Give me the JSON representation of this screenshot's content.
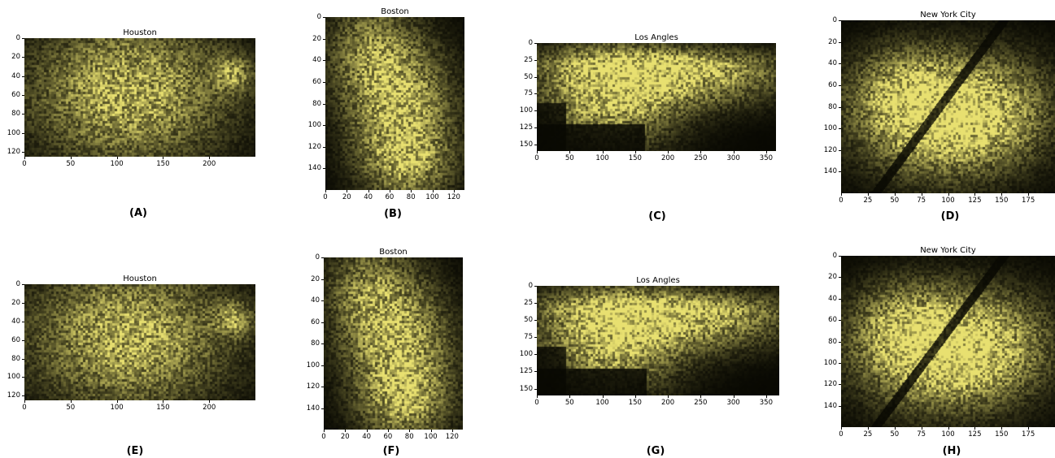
{
  "panels": [
    {
      "id": "A",
      "title": "Houston",
      "caption": "(A)",
      "seed": 11,
      "xticks": [
        "0",
        "50",
        "100",
        "150",
        "200"
      ],
      "yticks": [
        "0",
        "20",
        "40",
        "60",
        "80",
        "100",
        "120"
      ],
      "xmax": 250,
      "ymax": 125
    },
    {
      "id": "B",
      "title": "Boston",
      "caption": "(B)",
      "seed": 23,
      "xticks": [
        "0",
        "20",
        "40",
        "60",
        "80",
        "100",
        "120"
      ],
      "yticks": [
        "0",
        "20",
        "40",
        "60",
        "80",
        "100",
        "120",
        "140"
      ],
      "xmax": 130,
      "ymax": 160
    },
    {
      "id": "C",
      "title": "Los Angles",
      "caption": "(C)",
      "seed": 37,
      "xticks": [
        "0",
        "50",
        "100",
        "150",
        "200",
        "250",
        "300",
        "350"
      ],
      "yticks": [
        "0",
        "25",
        "50",
        "75",
        "100",
        "125",
        "150"
      ],
      "xmax": 365,
      "ymax": 160
    },
    {
      "id": "D",
      "title": "New York City",
      "caption": "(D)",
      "seed": 41,
      "xticks": [
        "0",
        "25",
        "50",
        "75",
        "100",
        "125",
        "150",
        "175"
      ],
      "yticks": [
        "0",
        "20",
        "40",
        "60",
        "80",
        "100",
        "120",
        "140"
      ],
      "xmax": 200,
      "ymax": 160
    },
    {
      "id": "E",
      "title": "Houston",
      "caption": "(E)",
      "seed": 53,
      "xticks": [
        "0",
        "50",
        "100",
        "150",
        "200"
      ],
      "yticks": [
        "0",
        "20",
        "40",
        "60",
        "80",
        "100",
        "120"
      ],
      "xmax": 250,
      "ymax": 125
    },
    {
      "id": "F",
      "title": "Boston",
      "caption": "(F)",
      "seed": 67,
      "xticks": [
        "0",
        "20",
        "40",
        "60",
        "80",
        "100",
        "120"
      ],
      "yticks": [
        "0",
        "20",
        "40",
        "60",
        "80",
        "100",
        "120",
        "140"
      ],
      "xmax": 130,
      "ymax": 160
    },
    {
      "id": "G",
      "title": "Los Angles",
      "caption": "(G)",
      "seed": 71,
      "xticks": [
        "0",
        "50",
        "100",
        "150",
        "200",
        "250",
        "300",
        "350"
      ],
      "yticks": [
        "0",
        "25",
        "50",
        "75",
        "100",
        "125",
        "150"
      ],
      "xmax": 370,
      "ymax": 160
    },
    {
      "id": "H",
      "title": "New York City",
      "caption": "(H)",
      "seed": 83,
      "xticks": [
        "0",
        "25",
        "50",
        "75",
        "100",
        "125",
        "150",
        "175"
      ],
      "yticks": [
        "0",
        "20",
        "40",
        "60",
        "80",
        "100",
        "120",
        "140"
      ],
      "xmax": 200,
      "ymax": 160
    }
  ],
  "colors": {
    "light": "#e8e070",
    "dark": "#080802"
  }
}
